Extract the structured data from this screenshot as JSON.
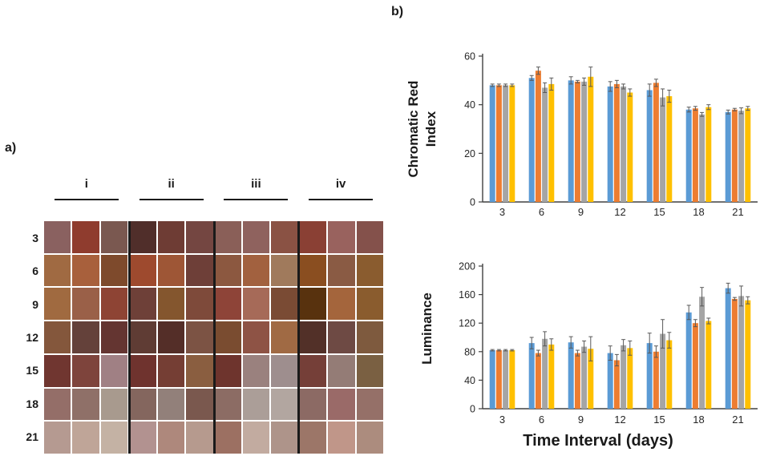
{
  "panel_a": {
    "label": "a)",
    "column_groups": [
      "i",
      "ii",
      "iii",
      "iv"
    ],
    "row_labels": [
      "3",
      "6",
      "9",
      "12",
      "15",
      "18",
      "21"
    ],
    "grid_colors": [
      [
        "#8a6160",
        "#8f3c2e",
        "#7a5850",
        "#502e2a",
        "#6e3c34",
        "#744641",
        "#8a5f58",
        "#8f625e",
        "#8a5244",
        "#8a4034",
        "#99625e",
        "#84514b"
      ],
      [
        "#a06a42",
        "#a8603c",
        "#7e4a2c",
        "#9e4a2e",
        "#9e5636",
        "#6e3f38",
        "#8c5840",
        "#a2613f",
        "#a07a5c",
        "#8a4e20",
        "#8a5b44",
        "#8a5c2f"
      ],
      [
        "#a06a40",
        "#9a6048",
        "#8e4434",
        "#6e4038",
        "#84562e",
        "#7e4a3a",
        "#8e4438",
        "#a66a58",
        "#7a4b34",
        "#58320e",
        "#a4653c",
        "#8a5c2e"
      ],
      [
        "#84573c",
        "#64413a",
        "#643531",
        "#5f3c34",
        "#542e28",
        "#7c5344",
        "#7a4c30",
        "#8e5345",
        "#a06a44",
        "#523028",
        "#6e4a44",
        "#7e5a3e"
      ],
      [
        "#703630",
        "#7e443c",
        "#a08084",
        "#6f332e",
        "#753e34",
        "#8a5e40",
        "#6e342d",
        "#9a817e",
        "#9e8e8e",
        "#753f38",
        "#947c76",
        "#7a6042"
      ],
      [
        "#946e68",
        "#8f7068",
        "#a89a8e",
        "#84665e",
        "#92807a",
        "#7a584e",
        "#8c6c64",
        "#ab9e98",
        "#b2a6a0",
        "#8c6a64",
        "#9a6a68",
        "#957068"
      ],
      [
        "#b59a91",
        "#bfa598",
        "#c4b2a4",
        "#b29290",
        "#ae887c",
        "#b69a8e",
        "#9c7062",
        "#c2aba0",
        "#ae948a",
        "#9c7668",
        "#c09689",
        "#ac8c7e"
      ]
    ]
  },
  "panel_b": {
    "label": "b)"
  },
  "chart_data": [
    {
      "type": "bar",
      "title": "",
      "ylabel": "Chromatic Red Index",
      "xlabel": "",
      "categories": [
        "3",
        "6",
        "9",
        "12",
        "15",
        "18",
        "21"
      ],
      "ylim": [
        0,
        60
      ],
      "yticks": [
        0,
        20,
        40,
        60
      ],
      "grid": false,
      "legend": "none",
      "error_bars": true,
      "series": [
        {
          "name": "blue",
          "color": "#5B9BD5",
          "values": [
            48,
            51,
            50,
            47.5,
            46,
            38,
            37
          ],
          "errors": [
            0.5,
            1,
            1.5,
            2,
            2.5,
            1,
            0.8
          ]
        },
        {
          "name": "orange",
          "color": "#ED7D31",
          "values": [
            48,
            54,
            49.5,
            48.5,
            49,
            38.5,
            38
          ],
          "errors": [
            0.5,
            1.5,
            0.5,
            1.5,
            1.5,
            0.8,
            0.5
          ]
        },
        {
          "name": "gray",
          "color": "#A5A5A5",
          "values": [
            48,
            47,
            49.5,
            47.5,
            43,
            36,
            37.5
          ],
          "errors": [
            0.5,
            2,
            1.5,
            1,
            3.5,
            0.8,
            1.2
          ]
        },
        {
          "name": "yellow",
          "color": "#FFC000",
          "values": [
            48,
            48.5,
            51.5,
            45,
            43.5,
            39,
            38.5
          ],
          "errors": [
            0.5,
            2.5,
            4,
            1.5,
            2.5,
            1,
            0.8
          ]
        }
      ]
    },
    {
      "type": "bar",
      "title": "",
      "ylabel": "Luminance",
      "xlabel": "Time Interval (days)",
      "categories": [
        "3",
        "6",
        "9",
        "12",
        "15",
        "18",
        "21"
      ],
      "ylim": [
        0,
        200
      ],
      "yticks": [
        0,
        40,
        80,
        120,
        160,
        200
      ],
      "grid": false,
      "legend": "none",
      "error_bars": true,
      "series": [
        {
          "name": "blue",
          "color": "#5B9BD5",
          "values": [
            82,
            92,
            93,
            78,
            92,
            135,
            169
          ],
          "errors": [
            1,
            8,
            8,
            10,
            14,
            10,
            7
          ]
        },
        {
          "name": "orange",
          "color": "#ED7D31",
          "values": [
            82,
            78,
            78,
            68,
            80,
            120,
            154
          ],
          "errors": [
            1,
            4,
            4,
            8,
            8,
            5,
            2
          ]
        },
        {
          "name": "gray",
          "color": "#A5A5A5",
          "values": [
            82,
            98,
            87,
            89,
            105,
            157,
            158
          ],
          "errors": [
            1,
            10,
            8,
            8,
            20,
            13,
            14
          ]
        },
        {
          "name": "yellow",
          "color": "#FFC000",
          "values": [
            82,
            90,
            84,
            85,
            96,
            123,
            152
          ],
          "errors": [
            1,
            8,
            17,
            10,
            11,
            4,
            5
          ]
        }
      ]
    }
  ],
  "colors": {
    "axis": "#404040",
    "text": "#262626",
    "error_bar": "#595959",
    "separator": "#1a1a1a"
  }
}
